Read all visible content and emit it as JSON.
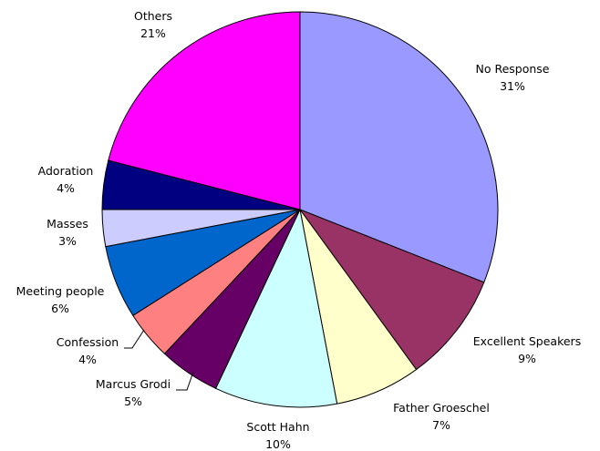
{
  "chart_data": {
    "type": "pie",
    "title": "",
    "slices": [
      {
        "name": "No Response",
        "pct_label": "31%",
        "value": 31,
        "color": "#9999FF"
      },
      {
        "name": "Excellent Speakers",
        "pct_label": "9%",
        "value": 9,
        "color": "#993366"
      },
      {
        "name": "Father Groeschel",
        "pct_label": "7%",
        "value": 7,
        "color": "#FFFFCC"
      },
      {
        "name": "Scott Hahn",
        "pct_label": "10%",
        "value": 10,
        "color": "#CCFFFF"
      },
      {
        "name": "Marcus Grodi",
        "pct_label": "5%",
        "value": 5,
        "color": "#660066"
      },
      {
        "name": "Confession",
        "pct_label": "4%",
        "value": 4,
        "color": "#FF8080"
      },
      {
        "name": "Meeting people",
        "pct_label": "6%",
        "value": 6,
        "color": "#0066CC"
      },
      {
        "name": "Masses",
        "pct_label": "3%",
        "value": 3,
        "color": "#CCCCFF"
      },
      {
        "name": "Adoration",
        "pct_label": "4%",
        "value": 4,
        "color": "#000080"
      },
      {
        "name": "Others",
        "pct_label": "21%",
        "value": 21,
        "color": "#FF00FF"
      }
    ]
  }
}
